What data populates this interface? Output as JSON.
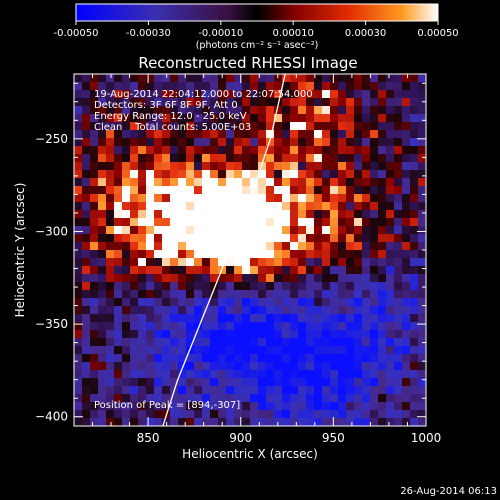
{
  "chart_data": {
    "type": "heatmap",
    "title": "Reconstructed RHESSI Image",
    "xlabel": "Heliocentric X (arcsec)",
    "ylabel": "Heliocentric Y (arcsec)",
    "xlim": [
      810,
      1000
    ],
    "ylim": [
      -405,
      -215
    ],
    "x_ticks": [
      850,
      900,
      950,
      1000
    ],
    "y_ticks": [
      -250,
      -300,
      -350,
      -400
    ],
    "colorbar": {
      "ticks": [
        "-0.00050",
        "-0.00030",
        "-0.00010",
        "0.00010",
        "0.00030",
        "0.00050"
      ],
      "range": [
        -0.0005,
        0.0005
      ],
      "unit_label": "(photons cm⁻² s⁻¹ asec⁻²)",
      "colors": [
        "#0000ff",
        "#3030c0",
        "#5a2a8a",
        "#2a0a1a",
        "#800000",
        "#e03010",
        "#ff9020",
        "#ffffff"
      ]
    },
    "annotations": [
      "19-Aug-2014 22:04:12.000 to 22:07:54.000",
      "Detectors: 3F 6F 8F 9F, Att 0",
      "Energy Range: 12.0 - 25.0 keV",
      "Clean    Total counts: 5.00E+03"
    ],
    "peak_label": "Position of Peak = [894,-307]",
    "peak": [
      894,
      -307
    ],
    "limb_curve_x": [
      858,
      866,
      876,
      886,
      896,
      906,
      916,
      924
    ],
    "limb_curve_y": [
      -405,
      -380,
      -355,
      -330,
      -305,
      -280,
      -250,
      -215
    ],
    "bright_sources": [
      {
        "x": 935,
        "y": -238,
        "v": 0.0003
      },
      {
        "x": 910,
        "y": -298,
        "v": 0.00042
      },
      {
        "x": 895,
        "y": -300,
        "v": 0.00038
      },
      {
        "x": 870,
        "y": -292,
        "v": 0.00028
      },
      {
        "x": 840,
        "y": -270,
        "v": 0.00022
      },
      {
        "x": 960,
        "y": -300,
        "v": 0.00024
      },
      {
        "x": 845,
        "y": -305,
        "v": 0.0002
      }
    ],
    "dim_sources": [
      {
        "x": 905,
        "y": -350,
        "v": -0.0004
      },
      {
        "x": 870,
        "y": -360,
        "v": -0.0003
      },
      {
        "x": 955,
        "y": -370,
        "v": -0.00033
      },
      {
        "x": 930,
        "y": -385,
        "v": -0.00025
      },
      {
        "x": 975,
        "y": -340,
        "v": -0.00022
      }
    ]
  },
  "footer": {
    "timestamp": "26-Aug-2014 06:13"
  }
}
